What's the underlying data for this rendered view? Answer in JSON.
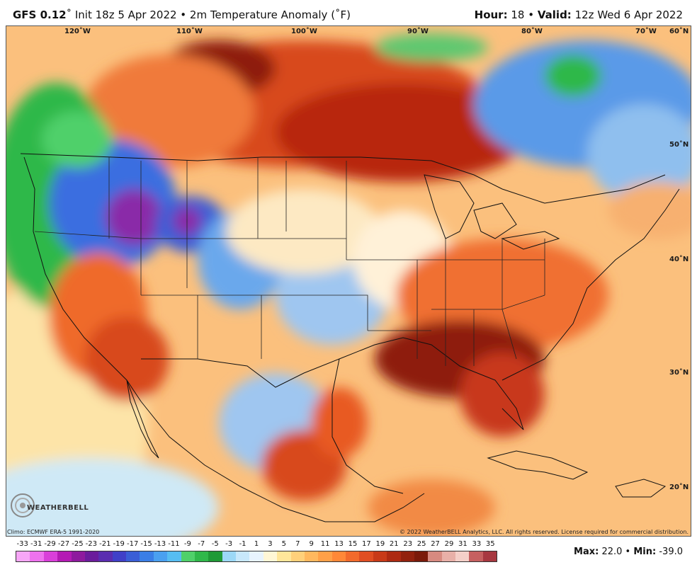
{
  "header": {
    "model": "GFS 0.12",
    "init": "˚ Init 18z 5 Apr 2022 • 2m Temperature Anomaly (˚F)",
    "hour_label": "Hour:",
    "hour_value": "18",
    "valid_label": "Valid:",
    "valid_value": "12z Wed 6 Apr 2022"
  },
  "map": {
    "longitude_labels": [
      "120˚W",
      "110˚W",
      "100˚W",
      "90˚W",
      "80˚W",
      "70˚W",
      "60˚N"
    ],
    "latitude_labels": [
      "50˚N",
      "40˚N",
      "30˚N",
      "20˚N"
    ]
  },
  "footer": {
    "climo": "Climo: ECMWF ERA-5 1991-2020",
    "copyright": "© 2022 WeatherBELL Analytics, LLC. All rights reserved. License required for commercial distribution.",
    "max_label": "Max:",
    "max_value": "22.0",
    "min_label": "Min:",
    "min_value": "-39.0",
    "logo": "WEATHERBELL"
  },
  "legend": {
    "ticks": [
      "-33",
      "-31",
      "-29",
      "-27",
      "-25",
      "-23",
      "-21",
      "-19",
      "-17",
      "-15",
      "-13",
      "-11",
      "-9",
      "-7",
      "-5",
      "-3",
      "-1",
      "1",
      "3",
      "5",
      "7",
      "9",
      "11",
      "13",
      "15",
      "17",
      "19",
      "21",
      "23",
      "25",
      "27",
      "29",
      "31",
      "33",
      "35"
    ],
    "colors": [
      "#f7a6f7",
      "#ee72ee",
      "#d93fd9",
      "#b41ab4",
      "#8e1a9e",
      "#6b1c9c",
      "#5a2db0",
      "#4040c8",
      "#3a5ed6",
      "#3a7ee6",
      "#4aa0f0",
      "#56bdf2",
      "#4fd06a",
      "#2fb84a",
      "#1f9a36",
      "#9cd8f6",
      "#c8e8fb",
      "#e8f4fe",
      "#fff7d6",
      "#ffe69a",
      "#ffd07a",
      "#ffb85e",
      "#ffa048",
      "#ff8838",
      "#f26a2c",
      "#e04e22",
      "#c83a18",
      "#ad2a12",
      "#92220e",
      "#7a1a0a",
      "#d78a80",
      "#e8b0a8",
      "#f4cfc8",
      "#c66060",
      "#a73840"
    ]
  }
}
